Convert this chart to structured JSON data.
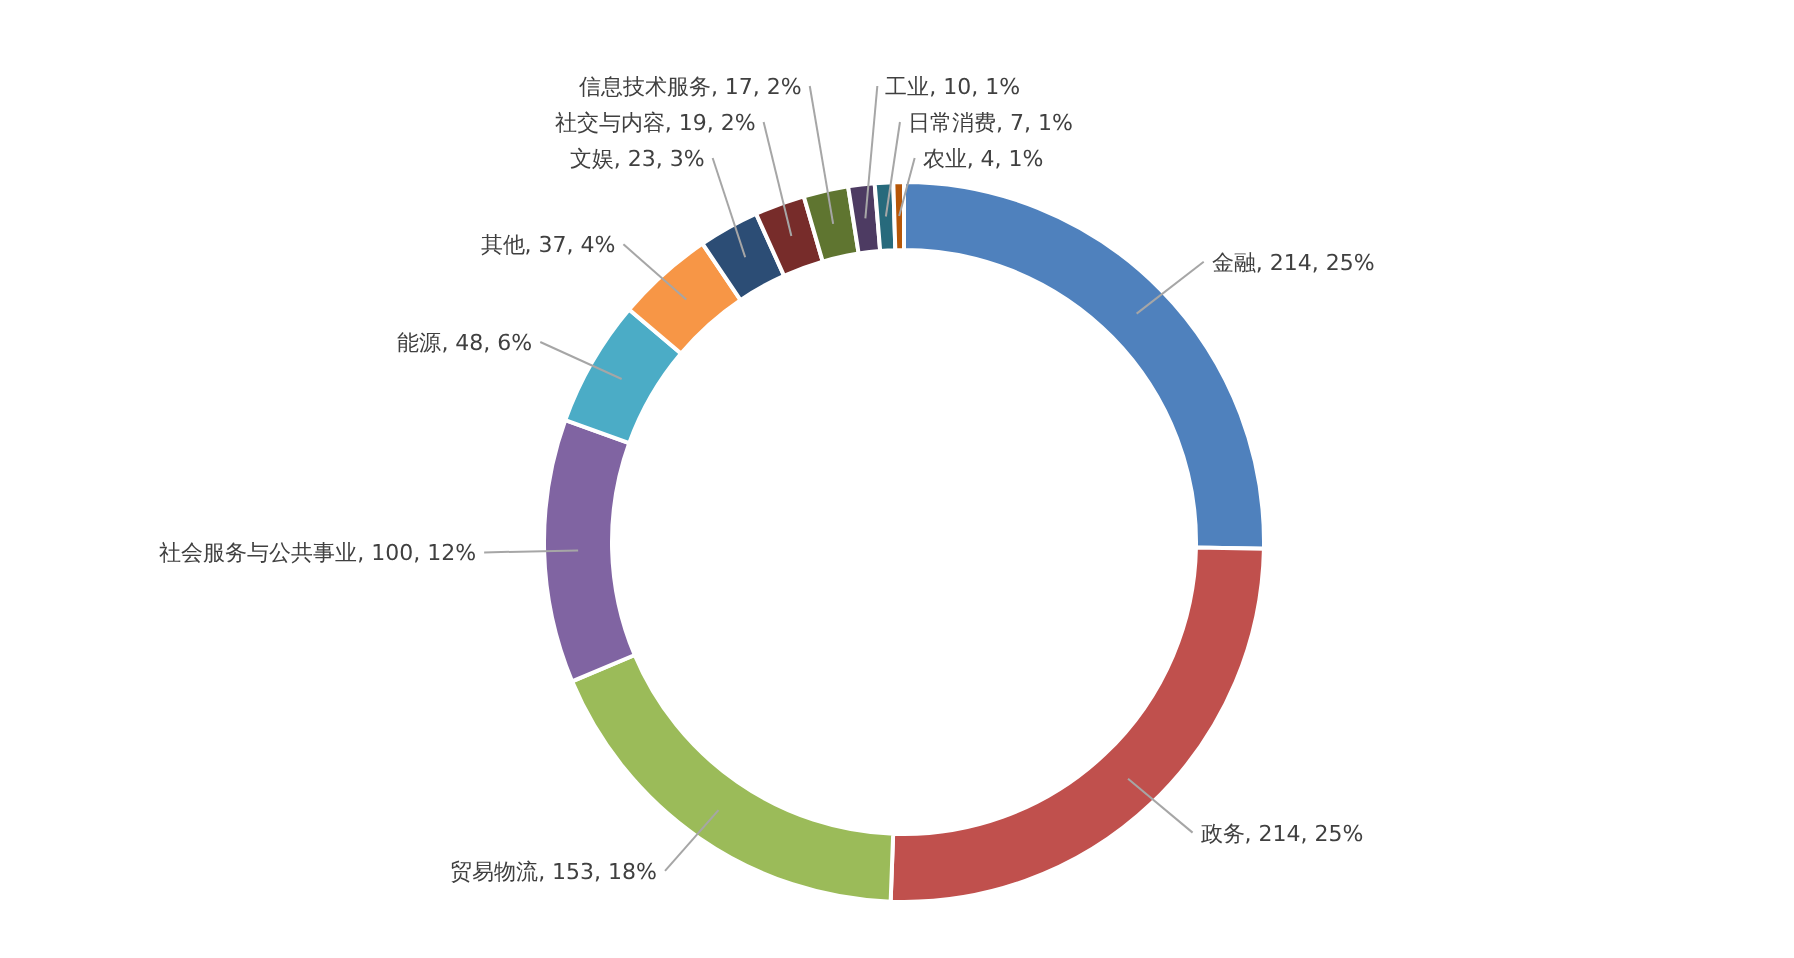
{
  "chart_data": {
    "type": "donut",
    "categories": [
      "金融",
      "政务",
      "贸易物流",
      "社会服务与公共事业",
      "能源",
      "其他",
      "文娱",
      "社交与内容",
      "信息技术服务",
      "工业",
      "日常消费",
      "农业"
    ],
    "values": [
      214,
      214,
      153,
      100,
      48,
      37,
      23,
      19,
      17,
      10,
      7,
      4
    ],
    "value_labels": [
      "214, 25%",
      "214, 25%",
      "153, 18%",
      "100, 12%",
      "48, 6%",
      "37, 4%",
      "23, 3%",
      "19, 2%",
      "17, 2%",
      "10, 1%",
      "7, 1%",
      "4, 1%"
    ],
    "colors": [
      "#4f81bd",
      "#c0504d",
      "#9bbb59",
      "#8064a2",
      "#4bacc6",
      "#f79646",
      "#2c4d75",
      "#772c2a",
      "#5f7530",
      "#4d3b62",
      "#276a7c",
      "#b65708"
    ],
    "legend": false
  }
}
